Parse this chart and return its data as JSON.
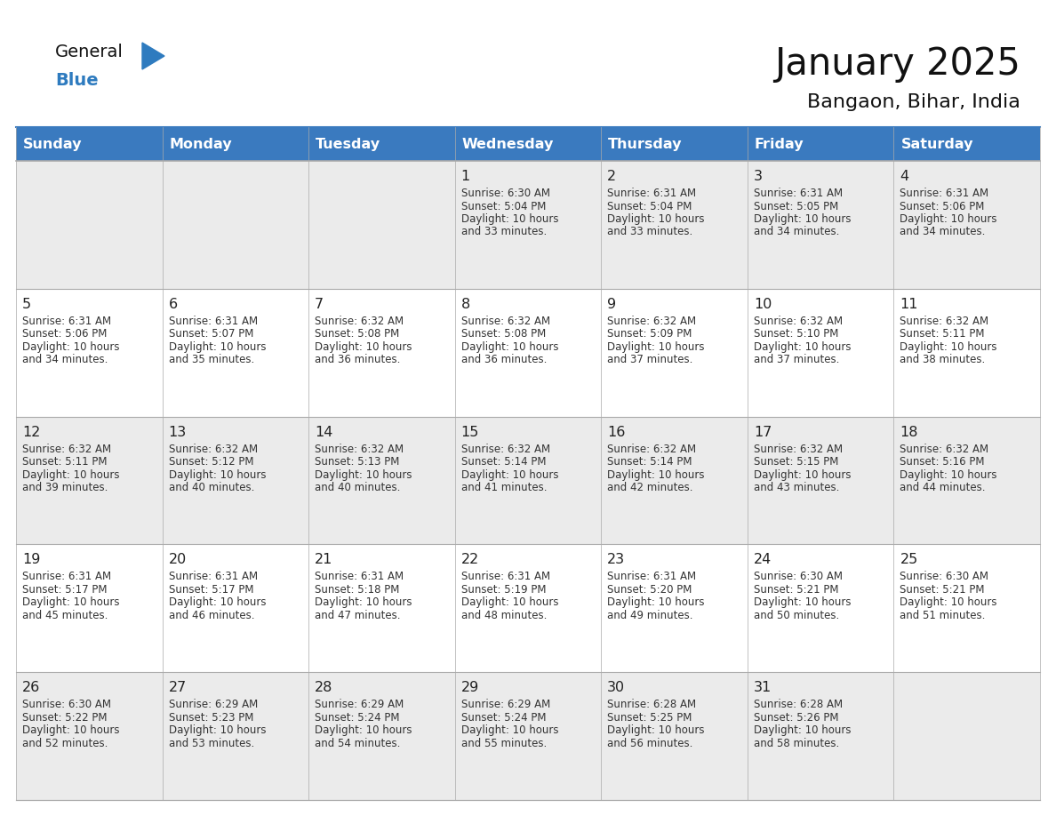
{
  "title": "January 2025",
  "subtitle": "Bangaon, Bihar, India",
  "header_bg": "#3a7abf",
  "header_text": "#ffffff",
  "weekdays": [
    "Sunday",
    "Monday",
    "Tuesday",
    "Wednesday",
    "Thursday",
    "Friday",
    "Saturday"
  ],
  "row_bg_odd": "#ebebeb",
  "row_bg_even": "#ffffff",
  "cell_border": "#aaaaaa",
  "day_number_color": "#222222",
  "info_color": "#333333",
  "calendar": [
    [
      {
        "day": "",
        "sunrise": "",
        "sunset": "",
        "daylight": ""
      },
      {
        "day": "",
        "sunrise": "",
        "sunset": "",
        "daylight": ""
      },
      {
        "day": "",
        "sunrise": "",
        "sunset": "",
        "daylight": ""
      },
      {
        "day": "1",
        "sunrise": "6:30 AM",
        "sunset": "5:04 PM",
        "daylight": "10 hours and 33 minutes."
      },
      {
        "day": "2",
        "sunrise": "6:31 AM",
        "sunset": "5:04 PM",
        "daylight": "10 hours and 33 minutes."
      },
      {
        "day": "3",
        "sunrise": "6:31 AM",
        "sunset": "5:05 PM",
        "daylight": "10 hours and 34 minutes."
      },
      {
        "day": "4",
        "sunrise": "6:31 AM",
        "sunset": "5:06 PM",
        "daylight": "10 hours and 34 minutes."
      }
    ],
    [
      {
        "day": "5",
        "sunrise": "6:31 AM",
        "sunset": "5:06 PM",
        "daylight": "10 hours and 34 minutes."
      },
      {
        "day": "6",
        "sunrise": "6:31 AM",
        "sunset": "5:07 PM",
        "daylight": "10 hours and 35 minutes."
      },
      {
        "day": "7",
        "sunrise": "6:32 AM",
        "sunset": "5:08 PM",
        "daylight": "10 hours and 36 minutes."
      },
      {
        "day": "8",
        "sunrise": "6:32 AM",
        "sunset": "5:08 PM",
        "daylight": "10 hours and 36 minutes."
      },
      {
        "day": "9",
        "sunrise": "6:32 AM",
        "sunset": "5:09 PM",
        "daylight": "10 hours and 37 minutes."
      },
      {
        "day": "10",
        "sunrise": "6:32 AM",
        "sunset": "5:10 PM",
        "daylight": "10 hours and 37 minutes."
      },
      {
        "day": "11",
        "sunrise": "6:32 AM",
        "sunset": "5:11 PM",
        "daylight": "10 hours and 38 minutes."
      }
    ],
    [
      {
        "day": "12",
        "sunrise": "6:32 AM",
        "sunset": "5:11 PM",
        "daylight": "10 hours and 39 minutes."
      },
      {
        "day": "13",
        "sunrise": "6:32 AM",
        "sunset": "5:12 PM",
        "daylight": "10 hours and 40 minutes."
      },
      {
        "day": "14",
        "sunrise": "6:32 AM",
        "sunset": "5:13 PM",
        "daylight": "10 hours and 40 minutes."
      },
      {
        "day": "15",
        "sunrise": "6:32 AM",
        "sunset": "5:14 PM",
        "daylight": "10 hours and 41 minutes."
      },
      {
        "day": "16",
        "sunrise": "6:32 AM",
        "sunset": "5:14 PM",
        "daylight": "10 hours and 42 minutes."
      },
      {
        "day": "17",
        "sunrise": "6:32 AM",
        "sunset": "5:15 PM",
        "daylight": "10 hours and 43 minutes."
      },
      {
        "day": "18",
        "sunrise": "6:32 AM",
        "sunset": "5:16 PM",
        "daylight": "10 hours and 44 minutes."
      }
    ],
    [
      {
        "day": "19",
        "sunrise": "6:31 AM",
        "sunset": "5:17 PM",
        "daylight": "10 hours and 45 minutes."
      },
      {
        "day": "20",
        "sunrise": "6:31 AM",
        "sunset": "5:17 PM",
        "daylight": "10 hours and 46 minutes."
      },
      {
        "day": "21",
        "sunrise": "6:31 AM",
        "sunset": "5:18 PM",
        "daylight": "10 hours and 47 minutes."
      },
      {
        "day": "22",
        "sunrise": "6:31 AM",
        "sunset": "5:19 PM",
        "daylight": "10 hours and 48 minutes."
      },
      {
        "day": "23",
        "sunrise": "6:31 AM",
        "sunset": "5:20 PM",
        "daylight": "10 hours and 49 minutes."
      },
      {
        "day": "24",
        "sunrise": "6:30 AM",
        "sunset": "5:21 PM",
        "daylight": "10 hours and 50 minutes."
      },
      {
        "day": "25",
        "sunrise": "6:30 AM",
        "sunset": "5:21 PM",
        "daylight": "10 hours and 51 minutes."
      }
    ],
    [
      {
        "day": "26",
        "sunrise": "6:30 AM",
        "sunset": "5:22 PM",
        "daylight": "10 hours and 52 minutes."
      },
      {
        "day": "27",
        "sunrise": "6:29 AM",
        "sunset": "5:23 PM",
        "daylight": "10 hours and 53 minutes."
      },
      {
        "day": "28",
        "sunrise": "6:29 AM",
        "sunset": "5:24 PM",
        "daylight": "10 hours and 54 minutes."
      },
      {
        "day": "29",
        "sunrise": "6:29 AM",
        "sunset": "5:24 PM",
        "daylight": "10 hours and 55 minutes."
      },
      {
        "day": "30",
        "sunrise": "6:28 AM",
        "sunset": "5:25 PM",
        "daylight": "10 hours and 56 minutes."
      },
      {
        "day": "31",
        "sunrise": "6:28 AM",
        "sunset": "5:26 PM",
        "daylight": "10 hours and 58 minutes."
      },
      {
        "day": "",
        "sunrise": "",
        "sunset": "",
        "daylight": ""
      }
    ]
  ],
  "logo_general_color": "#111111",
  "logo_blue_color": "#2e7bbf",
  "title_fontsize": 30,
  "subtitle_fontsize": 16,
  "header_fontsize": 11.5,
  "day_number_fontsize": 11.5,
  "info_fontsize": 8.5
}
